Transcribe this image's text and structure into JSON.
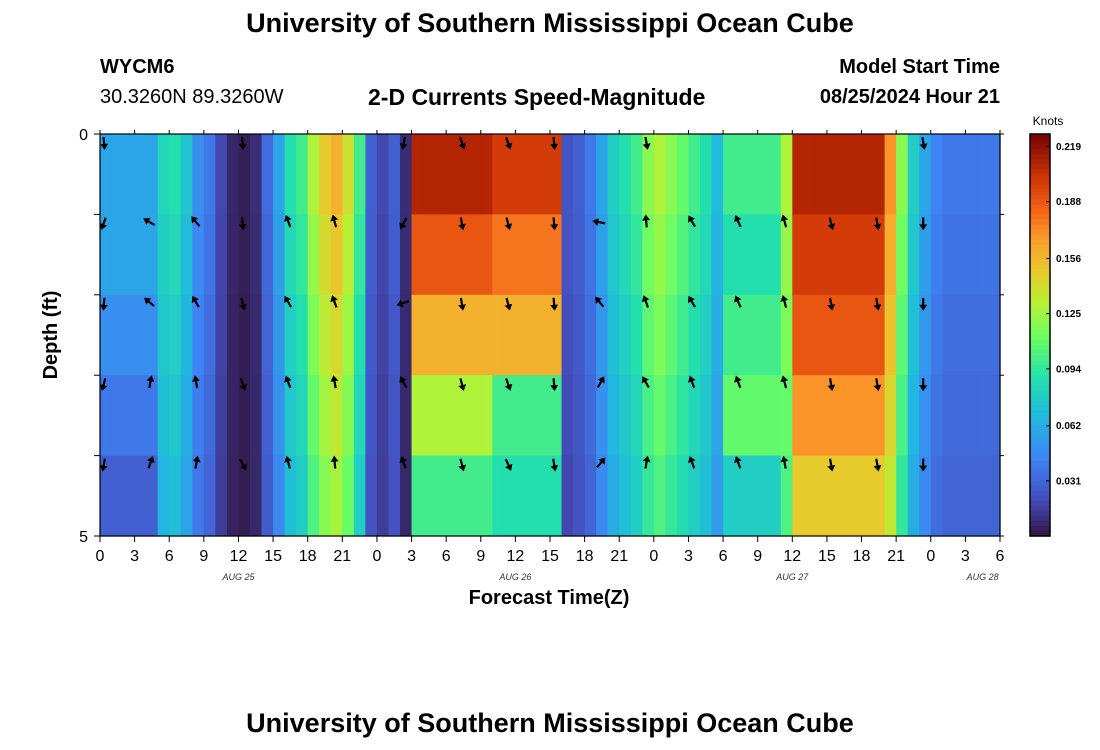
{
  "page": {
    "title": "University of Southern Mississippi Ocean Cube",
    "footer_title": "University of Southern Mississippi Ocean Cube",
    "station": "WYCM6",
    "coordinates": "30.3260N  89.3260W",
    "model_start_label": "Model Start Time",
    "model_start_value": "08/25/2024 Hour 21"
  },
  "chart_data": {
    "type": "heatmap",
    "title": "2-D Currents Speed-Magnitude",
    "xlabel": "Forecast Time(Z)",
    "ylabel": "Depth (ft)",
    "x_tick_labels": [
      "0",
      "3",
      "6",
      "9",
      "12",
      "15",
      "18",
      "21",
      "0",
      "3",
      "6",
      "9",
      "12",
      "15",
      "18",
      "21",
      "0",
      "3",
      "6",
      "9",
      "12",
      "15",
      "18",
      "21",
      "0",
      "3",
      "6"
    ],
    "date_labels": [
      {
        "label": "AUG 25",
        "tick_index": 4
      },
      {
        "label": "AUG 26",
        "tick_index": 12
      },
      {
        "label": "AUG 27",
        "tick_index": 20
      },
      {
        "label": "AUG 28",
        "tick_index": 25.5
      }
    ],
    "x_range_hours": [
      0,
      78
    ],
    "ylim": [
      0,
      5
    ],
    "y_tick_labels": [
      "0",
      "5"
    ],
    "n_depth_layers": 5,
    "colorbar": {
      "label": "Knots",
      "min": 0.0,
      "max": 0.226,
      "ticks": [
        0.219,
        0.188,
        0.156,
        0.125,
        0.094,
        0.062,
        0.031
      ]
    },
    "speed_profile_knots": [
      0.06,
      0.065,
      0.055,
      0.045,
      0.06,
      0.085,
      0.09,
      0.075,
      0.05,
      0.04,
      0.02,
      0.008,
      0.005,
      0.01,
      0.035,
      0.06,
      0.09,
      0.1,
      0.13,
      0.15,
      0.16,
      0.14,
      0.1,
      0.03,
      0.02,
      0.03,
      0.01,
      0.02,
      0.05,
      0.14,
      0.19,
      0.2,
      0.205,
      0.2,
      0.2,
      0.2,
      0.19,
      0.17,
      0.08,
      0.04,
      0.025,
      0.03,
      0.04,
      0.06,
      0.08,
      0.09,
      0.1,
      0.12,
      0.13,
      0.12,
      0.11,
      0.1,
      0.09,
      0.07,
      0.06,
      0.055,
      0.06,
      0.075,
      0.1,
      0.13,
      0.16,
      0.19,
      0.205,
      0.21,
      0.215,
      0.215,
      0.21,
      0.2,
      0.17,
      0.12,
      0.08,
      0.06,
      0.045,
      0.04,
      0.04,
      0.04,
      0.04,
      0.04
    ],
    "depth_profiles": [
      {
        "x_start": 0,
        "x_end": 5,
        "speeds": [
          0.06,
          0.06,
          0.05,
          0.04,
          0.03
        ]
      },
      {
        "x_start": 27,
        "x_end": 34,
        "speeds": [
          0.21,
          0.19,
          0.16,
          0.13,
          0.1
        ]
      },
      {
        "x_start": 34,
        "x_end": 40,
        "speeds": [
          0.2,
          0.18,
          0.16,
          0.1,
          0.09
        ]
      },
      {
        "x_start": 54,
        "x_end": 59,
        "speeds": [
          0.1,
          0.09,
          0.1,
          0.11,
          0.08
        ]
      },
      {
        "x_start": 60,
        "x_end": 68,
        "speeds": [
          0.21,
          0.2,
          0.19,
          0.17,
          0.15
        ]
      }
    ],
    "arrows": [
      {
        "hour": 0,
        "dirs": [
          175,
          200,
          185,
          195,
          190
        ]
      },
      {
        "hour": 4,
        "dirs": [
          null,
          300,
          310,
          10,
          20
        ]
      },
      {
        "hour": 8,
        "dirs": [
          null,
          320,
          330,
          350,
          10
        ]
      },
      {
        "hour": 12,
        "dirs": [
          175,
          175,
          165,
          160,
          150
        ]
      },
      {
        "hour": 16,
        "dirs": [
          null,
          340,
          330,
          340,
          345
        ]
      },
      {
        "hour": 20,
        "dirs": [
          null,
          345,
          340,
          350,
          355
        ]
      },
      {
        "hour": 24,
        "dirs": [
          null,
          null,
          null,
          null,
          null
        ]
      },
      {
        "hour": 26,
        "dirs": [
          190,
          210,
          250,
          330,
          340
        ]
      },
      {
        "hour": 31,
        "dirs": [
          160,
          170,
          170,
          165,
          165
        ]
      },
      {
        "hour": 35,
        "dirs": [
          160,
          165,
          165,
          160,
          155
        ]
      },
      {
        "hour": 39,
        "dirs": [
          175,
          175,
          175,
          175,
          170
        ]
      },
      {
        "hour": 43,
        "dirs": [
          null,
          280,
          320,
          30,
          40
        ]
      },
      {
        "hour": 47,
        "dirs": [
          170,
          355,
          340,
          330,
          10
        ]
      },
      {
        "hour": 51,
        "dirs": [
          null,
          330,
          330,
          340,
          340
        ]
      },
      {
        "hour": 55,
        "dirs": [
          null,
          335,
          335,
          340,
          340
        ]
      },
      {
        "hour": 59,
        "dirs": [
          null,
          345,
          345,
          345,
          350
        ]
      },
      {
        "hour": 63,
        "dirs": [
          null,
          165,
          170,
          170,
          170
        ]
      },
      {
        "hour": 67,
        "dirs": [
          null,
          170,
          170,
          170,
          170
        ]
      },
      {
        "hour": 71,
        "dirs": [
          170,
          180,
          180,
          180,
          180
        ]
      }
    ]
  }
}
